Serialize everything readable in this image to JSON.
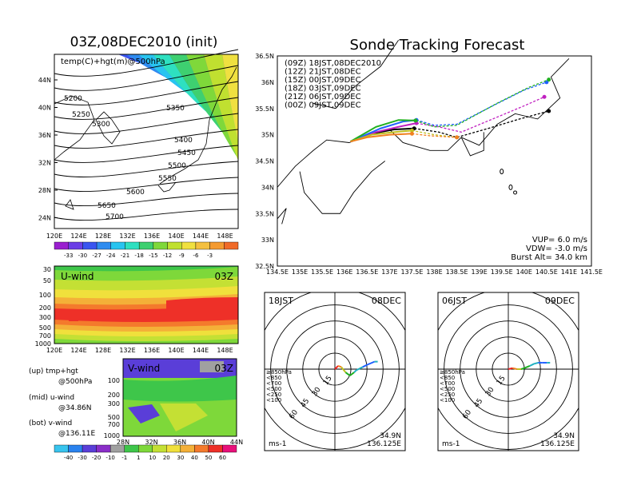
{
  "colors": {
    "temp": [
      "#9a1fcf",
      "#6b3ee6",
      "#3a55f0",
      "#2f8cf0",
      "#28c4f0",
      "#2ee0c0",
      "#3ed070",
      "#7fd83a",
      "#c0e030",
      "#f0e040",
      "#f4c040",
      "#f49a30",
      "#f06a28"
    ],
    "wind": [
      "#38c4ee",
      "#2a82ee",
      "#5a3ed8",
      "#8a2ec8",
      "#a0a0a0",
      "#3ec64a",
      "#7ed83a",
      "#c4e034",
      "#f0e03c",
      "#f4b038",
      "#f47a2c",
      "#ee3028",
      "#e8107a"
    ],
    "track": {
      "09Z": "#000000",
      "12Z": "#c020c0",
      "15Z": "#2060ff",
      "18Z": "#20b020",
      "21Z": "#c0c020",
      "00Z": "#f08020"
    }
  },
  "upper_left": {
    "title": "03Z,08DEC2010 (init)",
    "subtitle": "temp(C)+hgt(m)@500hPa",
    "lat_labels": [
      "44N",
      "40N",
      "36N",
      "32N",
      "28N",
      "24N"
    ],
    "lon_labels": [
      "120E",
      "124E",
      "128E",
      "132E",
      "136E",
      "140E",
      "144E",
      "148E"
    ],
    "contour_labels": [
      "5200",
      "5250",
      "5300",
      "5350",
      "5400",
      "5450",
      "5500",
      "5550",
      "5600",
      "5650",
      "5700"
    ],
    "colorbar_labels": [
      "-33",
      "-30",
      "-27",
      "-24",
      "-21",
      "-18",
      "-15",
      "-12",
      "-9",
      "-6",
      "-3"
    ]
  },
  "u_panel": {
    "name": "U-wind",
    "time": "03Z",
    "pressure_labels": [
      "30",
      "50",
      "100",
      "200",
      "300",
      "500",
      "700",
      "1000"
    ],
    "lon_labels": [
      "120E",
      "124E",
      "128E",
      "132E",
      "136E",
      "140E",
      "144E",
      "148E"
    ]
  },
  "v_panel": {
    "name": "V-wind",
    "time": "03Z",
    "pressure_labels": [
      "100",
      "200",
      "300",
      "500",
      "700",
      "1000"
    ],
    "lat_labels": [
      "28N",
      "32N",
      "36N",
      "40N",
      "44N"
    ]
  },
  "wind_colorbar_labels": [
    "-40",
    "-30",
    "-20",
    "-10",
    "-1",
    "1",
    "10",
    "20",
    "30",
    "40",
    "50",
    "60"
  ],
  "side_notes": [
    {
      "head": "(up) tmp+hgt",
      "sub": "@500hPa"
    },
    {
      "head": "(mid) u-wind",
      "sub": "@34.86N"
    },
    {
      "head": "(bot) v-wind",
      "sub": "@136.11E"
    }
  ],
  "chart_data": [
    {
      "type": "line",
      "title": "Sonde Tracking Forecast",
      "xlim": [
        134.5,
        141.5
      ],
      "ylim": [
        32.5,
        36.5
      ],
      "x_ticks": [
        "134.5E",
        "135E",
        "135.5E",
        "136E",
        "136.5E",
        "137E",
        "137.5E",
        "138E",
        "138.5E",
        "139E",
        "139.5E",
        "140E",
        "140.5E",
        "141E",
        "141.5E"
      ],
      "y_ticks": [
        "36.5N",
        "36N",
        "35.5N",
        "35N",
        "34.5N",
        "34N",
        "33.5N",
        "33N",
        "32.5N"
      ],
      "legend": [
        {
          "label": "(09Z)  18JST,08DEC2010",
          "color": "#000000"
        },
        {
          "label": "(12Z)  21JST,08DEC",
          "color": "#c020c0"
        },
        {
          "label": "(15Z)  00JST,09DEC",
          "color": "#2060ff"
        },
        {
          "label": "(18Z)  03JST,09DEC",
          "color": "#20b020"
        },
        {
          "label": "(21Z)  06JST,09DEC",
          "color": "#c0c020"
        },
        {
          "label": "(00Z)  09JST,09DEC",
          "color": "#f08020"
        }
      ],
      "series": [
        {
          "name": "09Z",
          "x": [
            136.13,
            136.6,
            137.1,
            137.55,
            138.1,
            138.5,
            139.2,
            139.9,
            140.55
          ],
          "y": [
            34.87,
            35.02,
            35.1,
            35.12,
            35.05,
            34.95,
            35.12,
            35.3,
            35.45
          ]
        },
        {
          "name": "12Z",
          "x": [
            136.13,
            136.7,
            137.2,
            137.6,
            138.1,
            138.6,
            139.3,
            140.0,
            140.45
          ],
          "y": [
            34.87,
            35.05,
            35.15,
            35.22,
            35.15,
            35.05,
            35.3,
            35.55,
            35.72
          ]
        },
        {
          "name": "15Z",
          "x": [
            136.13,
            136.8,
            137.3,
            137.6,
            138.0,
            138.5,
            139.3,
            140.0,
            140.5
          ],
          "y": [
            34.87,
            35.12,
            35.25,
            35.28,
            35.18,
            35.2,
            35.55,
            35.85,
            36.0
          ]
        },
        {
          "name": "18Z",
          "x": [
            136.13,
            136.7,
            137.2,
            137.58,
            138.0,
            138.5,
            139.4,
            140.1,
            140.55
          ],
          "y": [
            34.87,
            35.15,
            35.28,
            35.27,
            35.15,
            35.18,
            35.6,
            35.9,
            36.05
          ]
        },
        {
          "name": "21Z",
          "x": [
            136.13,
            136.6,
            137.1,
            137.5,
            138.0,
            138.5
          ],
          "y": [
            34.87,
            35.0,
            35.05,
            35.08,
            35.0,
            34.95
          ]
        },
        {
          "name": "00Z",
          "x": [
            136.13,
            136.5,
            137.0,
            137.5,
            137.9,
            138.5
          ],
          "y": [
            34.87,
            34.95,
            35.0,
            35.02,
            34.98,
            34.95
          ]
        }
      ],
      "annotations": [
        "VUP=  6.0  m/s",
        "VDW= -3.0  m/s",
        "Burst Alt=  34.0  km"
      ]
    },
    {
      "type": "line",
      "title_left": "18JST",
      "title_right": "08DEC",
      "range_labels": [
        "15",
        "30",
        "45",
        "60"
      ],
      "unit": "ms-1",
      "location": [
        "34.9N",
        "136.125E"
      ],
      "legend": [
        {
          "label": "≥850hPa",
          "color": "#ee2020"
        },
        {
          "label": "<850",
          "color": "#f08020"
        },
        {
          "label": "<700",
          "color": "#c0c020"
        },
        {
          "label": "<500",
          "color": "#20b020"
        },
        {
          "label": "<250",
          "color": "#20b0c0"
        },
        {
          "label": "<100",
          "color": "#2060ff"
        }
      ],
      "hodograph_u": [
        0,
        3,
        6,
        10,
        14,
        18,
        20,
        26,
        30,
        37,
        40
      ],
      "hodograph_v": [
        0,
        3,
        2,
        -3,
        -6,
        -3,
        -1,
        2,
        4,
        7,
        7
      ]
    },
    {
      "type": "line",
      "title_left": "06JST",
      "title_right": "09DEC",
      "range_labels": [
        "15",
        "30",
        "45",
        "60"
      ],
      "unit": "ms-1",
      "location": [
        "34.9N",
        "136.125E"
      ],
      "legend": [
        {
          "label": "≥850hPa",
          "color": "#ee2020"
        },
        {
          "label": "<850",
          "color": "#f08020"
        },
        {
          "label": "<700",
          "color": "#c0c020"
        },
        {
          "label": "<500",
          "color": "#20b020"
        },
        {
          "label": "<250",
          "color": "#20b0c0"
        },
        {
          "label": "<100",
          "color": "#2060ff"
        }
      ],
      "hodograph_u": [
        0,
        4,
        8,
        12,
        15,
        20,
        24,
        28,
        32,
        36,
        39
      ],
      "hodograph_v": [
        0,
        1,
        0,
        0,
        1,
        3,
        5,
        6,
        6,
        6,
        6
      ]
    }
  ]
}
